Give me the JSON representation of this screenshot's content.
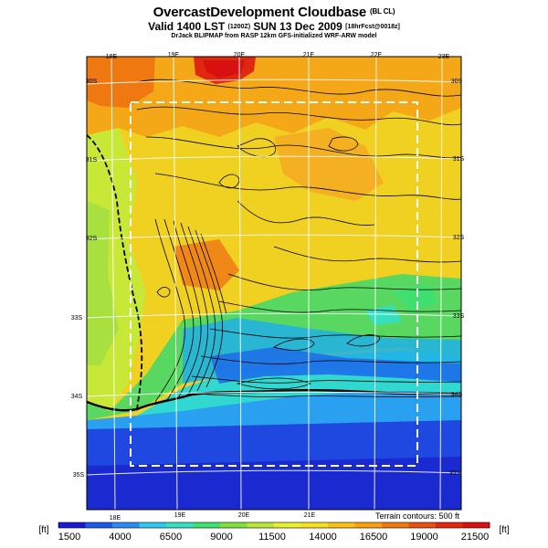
{
  "header": {
    "title_main": "OvercastDevelopment Cloudbase",
    "title_suffix": "(BL CL)",
    "valid_main": "Valid 1400 LST",
    "valid_code": "(1200Z)",
    "valid_date": "SUN 13 Dec 2009",
    "valid_forecast": "[18hrFcst@0018z]",
    "credit": "DrJack BLIPMAP from RASP 12km GFS-initialized WRF-ARW model"
  },
  "map": {
    "top_lon_labels": [
      "18E",
      "19E",
      "20E",
      "21E",
      "22E",
      "23E"
    ],
    "bottom_lon_labels": [
      "18E",
      "19E",
      "20E",
      "21E"
    ],
    "right_lat_labels": [
      "30S",
      "31S",
      "32S",
      "33S",
      "34S",
      "35S"
    ],
    "left_lat_labels": [
      "30S",
      "31S",
      "32S",
      "33S",
      "34S",
      "35S"
    ],
    "terrain_caption": "Terrain contours: 500 ft"
  },
  "colorbar": {
    "unit_left": "[ft]",
    "unit_right": "[ft]",
    "tick_labels": [
      "1500",
      "4000",
      "6500",
      "9000",
      "11500",
      "14000",
      "16500",
      "19000",
      "21500"
    ],
    "colors": [
      "#1a1ad0",
      "#1e5ae8",
      "#2a8cf0",
      "#2ec8f0",
      "#34e0c0",
      "#40e070",
      "#80e040",
      "#b8e838",
      "#e8f030",
      "#f8e020",
      "#f8c018",
      "#f8a010",
      "#f07810",
      "#e85010",
      "#e02810",
      "#d81010"
    ]
  }
}
